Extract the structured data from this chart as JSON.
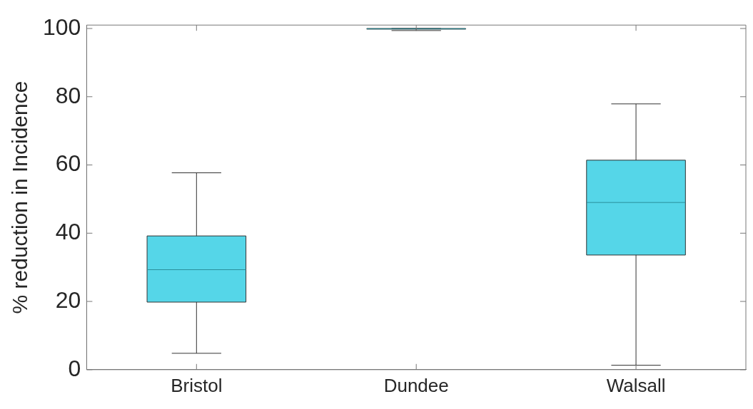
{
  "chart_data": {
    "type": "box",
    "ylabel": "% reduction in Incidence",
    "categories": [
      "Bristol",
      "Dundee",
      "Walsall"
    ],
    "color": "#55d6e8",
    "ylim": [
      0,
      101
    ],
    "yticks": [
      0,
      20,
      40,
      60,
      80,
      100
    ],
    "grid": false,
    "legend": false,
    "boxes": [
      {
        "low": 4.8,
        "q1": 19.8,
        "median": 29.3,
        "q3": 39.2,
        "high": 57.7
      },
      {
        "low": 99.4,
        "q1": 99.8,
        "median": 99.9,
        "q3": 100,
        "high": 100
      },
      {
        "low": 1.3,
        "q1": 33.6,
        "median": 49.0,
        "q3": 61.4,
        "high": 77.9
      }
    ]
  }
}
